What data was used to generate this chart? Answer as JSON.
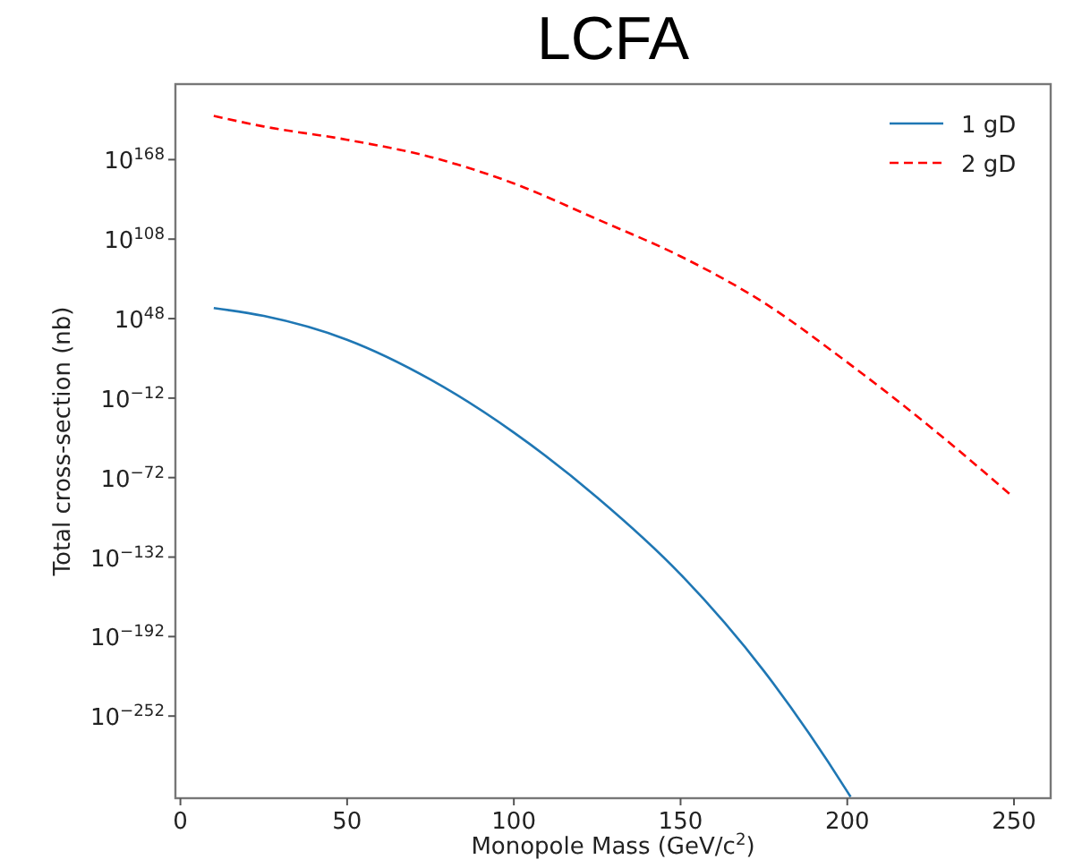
{
  "chart_data": {
    "type": "line",
    "title": "LCFA",
    "xlabel": "Monopole Mass (GeV/c$^{2}$)",
    "ylabel": "Total cross-section (nb)",
    "log": "y",
    "legend": "top right",
    "xlim": [
      -1.5,
      261
    ],
    "xticks": [
      0,
      50,
      100,
      150,
      200,
      250
    ],
    "ylim": [
      1e-314,
      1e+225
    ],
    "yticks": [
      {
        "value": 1e+168,
        "label": "10$^{168}$"
      },
      {
        "value": 1e+108,
        "label": "10$^{108}$"
      },
      {
        "value": 1e+48,
        "label": "10$^{48}$"
      },
      {
        "value": 1e-12,
        "label": "10$^{−12}$"
      },
      {
        "value": 1e-72,
        "label": "10$^{−72}$"
      },
      {
        "value": 1e-132,
        "label": "10$^{−132}$"
      },
      {
        "value": 1e-192,
        "label": "10$^{−192}$"
      },
      {
        "value": 1e-252,
        "label": "10$^{−252}$"
      }
    ],
    "series": [
      {
        "name": "1 gD",
        "color": "#1f77b4",
        "line_style": "solid",
        "x": [
          10,
          25,
          50,
          75,
          100,
          125,
          150,
          175,
          200,
          201
        ],
        "values": [
          1e+56,
          1e+50,
          1e+32,
          100.0,
          1e-38,
          1e-87,
          1e-145,
          1e-218,
          1e-309,
          1e-313
        ]
      },
      {
        "name": "2 gD",
        "color": "#ff0000",
        "line_style": "dashed",
        "x": [
          10,
          25,
          50,
          75,
          100,
          125,
          150,
          175,
          200,
          225,
          249
        ],
        "values": [
          1e+201,
          1e+193,
          1e+183,
          1e+170,
          1e+150,
          1e+123,
          1e+95,
          1e+60,
          1000000000000000.0,
          1e-34,
          1e-85
        ]
      }
    ]
  }
}
